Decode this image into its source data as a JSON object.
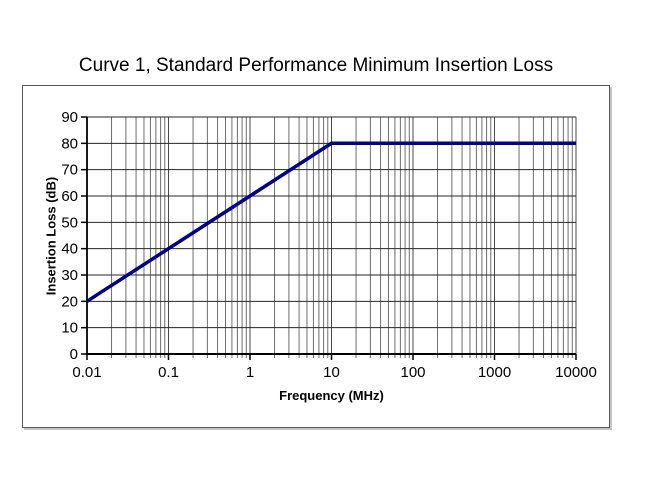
{
  "page": {
    "title": "Curve 1, Standard Performance Minimum Insertion Loss"
  },
  "chart_data": {
    "type": "line",
    "title": "Curve 1, Standard Performance Minimum Insertion Loss",
    "xlabel": "Frequency (MHz)",
    "ylabel": "Insertion Loss (dB)",
    "x_scale": "log",
    "y_scale": "linear",
    "xlim": [
      0.01,
      10000
    ],
    "ylim": [
      0,
      90
    ],
    "x_ticks": [
      0.01,
      0.1,
      1,
      10,
      100,
      1000,
      10000
    ],
    "x_tick_labels": [
      "0.01",
      "0.1",
      "1",
      "10",
      "100",
      "1000",
      "10000"
    ],
    "y_ticks": [
      0,
      10,
      20,
      30,
      40,
      50,
      60,
      70,
      80,
      90
    ],
    "grid": {
      "x_major": true,
      "x_minor": true,
      "y_major": true,
      "y_minor": false
    },
    "legend": "none",
    "series": [
      {
        "name": "Curve 1 minimum insertion loss",
        "color": "#00008B",
        "points": [
          [
            0.01,
            20
          ],
          [
            10,
            80
          ],
          [
            10000,
            80
          ]
        ]
      }
    ],
    "colors": {
      "line": "#00008B",
      "grid_major_x": "#4a4a4a",
      "grid_major_y": "#262626",
      "grid_minor": "#6e6e6e",
      "axis": "#000000",
      "frame_border": "#595959",
      "background": "#ffffff",
      "text": "#000000"
    }
  }
}
